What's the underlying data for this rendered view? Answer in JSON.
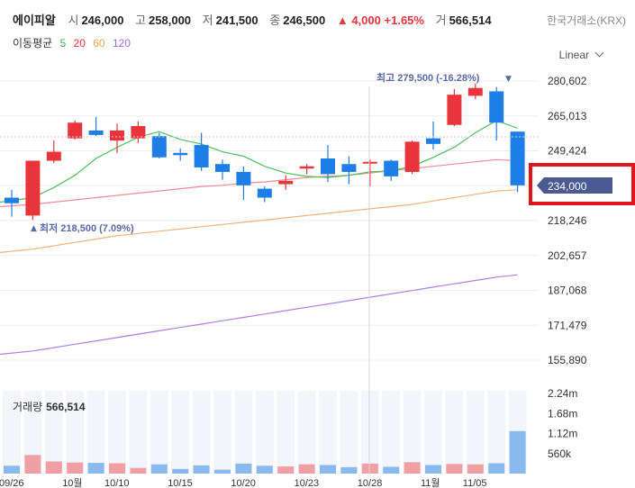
{
  "header": {
    "stock_name": "에이피알",
    "open_label": "시",
    "open": "246,000",
    "high_label": "고",
    "high": "258,000",
    "low_label": "저",
    "low": "241,500",
    "close_label": "종",
    "close": "246,500",
    "change": "4,000",
    "change_pct": "+1.65%",
    "volume_label": "거",
    "volume": "566,514",
    "exchange": "한국거래소(KRX)"
  },
  "ma": {
    "label": "이동평균",
    "items": [
      {
        "period": "5",
        "color": "#3fb34f"
      },
      {
        "period": "20",
        "color": "#e8343b"
      },
      {
        "period": "60",
        "color": "#f0a050"
      },
      {
        "period": "120",
        "color": "#9b6bd9"
      }
    ]
  },
  "scale_label": "Linear",
  "colors": {
    "up": "#e8343b",
    "down": "#1e7ee8",
    "vol_up": "#f0a0a4",
    "vol_down": "#8ab9f0",
    "current": "#4a5a92",
    "highlight": "#e0141c"
  },
  "chart_data": {
    "type": "candlestick",
    "y_ticks": [
      "280,602",
      "265,013",
      "249,424",
      "233,835",
      "218,246",
      "202,657",
      "187,068",
      "171,479",
      "155,890"
    ],
    "y_tick_values": [
      280602,
      265013,
      249424,
      233835,
      218246,
      202657,
      187068,
      171479,
      155890
    ],
    "current_price": "234,000",
    "current_value": 234000,
    "max_label": "최고 279,500 (-16.28%)",
    "min_label": "최저 218,500 (7.09%)",
    "x_labels": [
      "09/26",
      "10월",
      "10/10",
      "10/15",
      "10/20",
      "10/23",
      "10/28",
      "11월",
      "11/05"
    ],
    "x_label_index": [
      0,
      3,
      5,
      8,
      11,
      14,
      17,
      20,
      22
    ],
    "candles": [
      {
        "o": 228500,
        "h": 232000,
        "l": 220000,
        "c": 226000
      },
      {
        "o": 220500,
        "h": 245000,
        "l": 218500,
        "c": 245000
      },
      {
        "o": 245000,
        "h": 254000,
        "l": 244000,
        "c": 249000
      },
      {
        "o": 255000,
        "h": 263000,
        "l": 254500,
        "c": 262000
      },
      {
        "o": 258500,
        "h": 264500,
        "l": 256000,
        "c": 256500
      },
      {
        "o": 254000,
        "h": 261500,
        "l": 248500,
        "c": 258500
      },
      {
        "o": 255000,
        "h": 262500,
        "l": 253000,
        "c": 260500
      },
      {
        "o": 256000,
        "h": 257500,
        "l": 246000,
        "c": 246500
      },
      {
        "o": 248500,
        "h": 250500,
        "l": 245000,
        "c": 247500
      },
      {
        "o": 252000,
        "h": 257500,
        "l": 240500,
        "c": 242000
      },
      {
        "o": 243500,
        "h": 245500,
        "l": 236500,
        "c": 240000
      },
      {
        "o": 240000,
        "h": 242500,
        "l": 227500,
        "c": 234000
      },
      {
        "o": 232500,
        "h": 233500,
        "l": 226500,
        "c": 228500
      },
      {
        "o": 234500,
        "h": 238500,
        "l": 232000,
        "c": 236000
      },
      {
        "o": 241500,
        "h": 243500,
        "l": 239000,
        "c": 242500
      },
      {
        "o": 246000,
        "h": 252000,
        "l": 235500,
        "c": 239000
      },
      {
        "o": 243500,
        "h": 247000,
        "l": 234500,
        "c": 240000
      },
      {
        "o": 244000,
        "h": 245500,
        "l": 233500,
        "c": 244500
      },
      {
        "o": 245000,
        "h": 245500,
        "l": 236000,
        "c": 238000
      },
      {
        "o": 240000,
        "h": 254000,
        "l": 239000,
        "c": 253500
      },
      {
        "o": 255000,
        "h": 262500,
        "l": 250000,
        "c": 252500
      },
      {
        "o": 261000,
        "h": 277000,
        "l": 260500,
        "c": 274500
      },
      {
        "o": 274000,
        "h": 279500,
        "l": 272500,
        "c": 277500
      },
      {
        "o": 276000,
        "h": 278000,
        "l": 254000,
        "c": 262000
      },
      {
        "o": 258000,
        "h": 258000,
        "l": 231000,
        "c": 234000
      }
    ],
    "ma5": [
      226500,
      228500,
      233000,
      238500,
      246000,
      251000,
      255500,
      258000,
      254500,
      252500,
      249000,
      247000,
      242500,
      239500,
      238000,
      237500,
      238500,
      240000,
      240500,
      242500,
      246500,
      251000,
      257500,
      263000,
      259500
    ],
    "ma20": [
      224500,
      225500,
      226500,
      227500,
      228500,
      229500,
      230500,
      231500,
      232500,
      233500,
      234000,
      235000,
      235500,
      236500,
      237500,
      238000,
      238500,
      239500,
      240500,
      241500,
      242500,
      243500,
      244500,
      245500,
      245000
    ],
    "ma60": [
      204000,
      205500,
      207000,
      208500,
      210000,
      211500,
      212500,
      213500,
      214500,
      215500,
      216500,
      217500,
      218500,
      219500,
      220500,
      221500,
      222500,
      223500,
      224500,
      225500,
      227000,
      228500,
      230000,
      231500,
      232000
    ],
    "ma120": [
      158500,
      160000,
      161500,
      163000,
      164500,
      166000,
      167500,
      169000,
      170500,
      172000,
      173500,
      175000,
      176500,
      178000,
      179500,
      181000,
      182500,
      184000,
      185500,
      187000,
      188500,
      190000,
      191500,
      193000,
      194000
    ],
    "volume_title": "거래량",
    "volume_value": "566,514",
    "volume_ticks": [
      "2.24m",
      "1.68m",
      "1.12m",
      "560k"
    ],
    "volume_tick_values": [
      2240000,
      1680000,
      1120000,
      560000
    ],
    "volumes": [
      220000,
      520000,
      340000,
      310000,
      300000,
      290000,
      160000,
      260000,
      130000,
      230000,
      110000,
      280000,
      220000,
      200000,
      260000,
      240000,
      180000,
      280000,
      190000,
      320000,
      240000,
      270000,
      260000,
      290000,
      1190000
    ]
  }
}
